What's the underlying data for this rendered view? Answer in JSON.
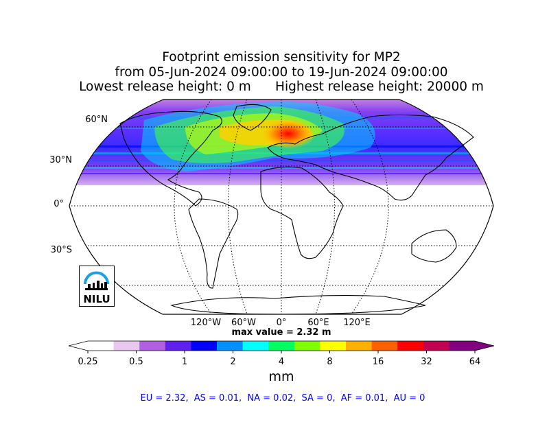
{
  "title": {
    "line1": "Footprint emission sensitivity for MP2",
    "line2": "from 05-Jun-2024 09:00:00 to 19-Jun-2024 09:00:00",
    "line3": "Lowest release height: 0 m      Highest release height: 20000 m"
  },
  "map": {
    "projection": "robinson",
    "lat_labels": [
      "60°N",
      "30°N",
      "0°",
      "30°S"
    ],
    "lon_labels": [
      "120°W",
      "60°W",
      "0°",
      "60°E",
      "120°E"
    ],
    "max_value_label": "max value = 2.32 m"
  },
  "logo": {
    "text": "NILU"
  },
  "chart_data": {
    "type": "heatmap",
    "title": "Footprint emission sensitivity for MP2",
    "colorbar": {
      "ticks": [
        "0.25",
        "0.5",
        "1",
        "2",
        "4",
        "8",
        "16",
        "32",
        "64"
      ],
      "units": "mm",
      "scale": "log",
      "colors": [
        "#ffffff",
        "#e8c8f0",
        "#b060e0",
        "#6020f0",
        "#0000ff",
        "#0090ff",
        "#00ffff",
        "#00ff60",
        "#80ff00",
        "#ffff00",
        "#ffb000",
        "#ff6000",
        "#ff0000",
        "#c00050",
        "#800080"
      ]
    },
    "max_value": 2.32,
    "region_values": [
      {
        "region": "EU",
        "value": 2.32
      },
      {
        "region": "AS",
        "value": 0.01
      },
      {
        "region": "NA",
        "value": 0.02
      },
      {
        "region": "SA",
        "value": 0
      },
      {
        "region": "AF",
        "value": 0.01
      },
      {
        "region": "AU",
        "value": 0
      }
    ]
  },
  "footer": {
    "regions_text": "EU = 2.32,  AS = 0.01,  NA = 0.02,  SA = 0,  AF = 0.01,  AU = 0"
  }
}
